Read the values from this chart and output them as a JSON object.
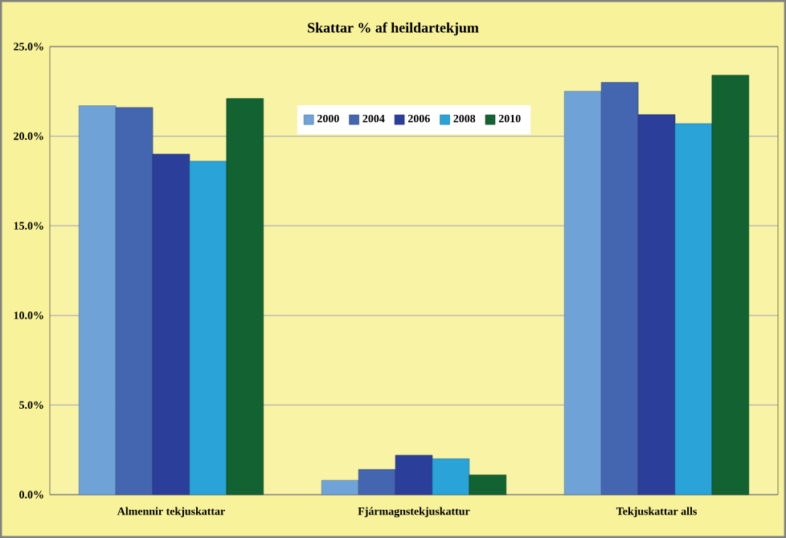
{
  "chart_data": {
    "type": "bar",
    "title": "Skattar % af heildartekjum",
    "categories": [
      "Almennir tekjuskattar",
      "Fjármagnstekjuskattur",
      "Tekjuskattar alls"
    ],
    "series": [
      {
        "name": "2000",
        "color": "#6fa3d8",
        "values": [
          21.7,
          0.8,
          22.5
        ]
      },
      {
        "name": "2004",
        "color": "#4466b0",
        "values": [
          21.6,
          1.4,
          23.0
        ]
      },
      {
        "name": "2006",
        "color": "#2b3f9a",
        "values": [
          19.0,
          2.2,
          21.2
        ]
      },
      {
        "name": "2008",
        "color": "#29a3d8",
        "values": [
          18.6,
          2.0,
          20.7
        ]
      },
      {
        "name": "2010",
        "color": "#136232",
        "values": [
          22.1,
          1.1,
          23.4
        ]
      }
    ],
    "ylim": [
      0,
      25
    ],
    "yticks": [
      {
        "value": 0,
        "label": "0.0%"
      },
      {
        "value": 5,
        "label": "5.0%"
      },
      {
        "value": 10,
        "label": "10.0%"
      },
      {
        "value": 15,
        "label": "15.0%"
      },
      {
        "value": 20,
        "label": "20.0%"
      },
      {
        "value": 25,
        "label": "25.0%"
      }
    ],
    "grid": "y",
    "legend": "top"
  }
}
